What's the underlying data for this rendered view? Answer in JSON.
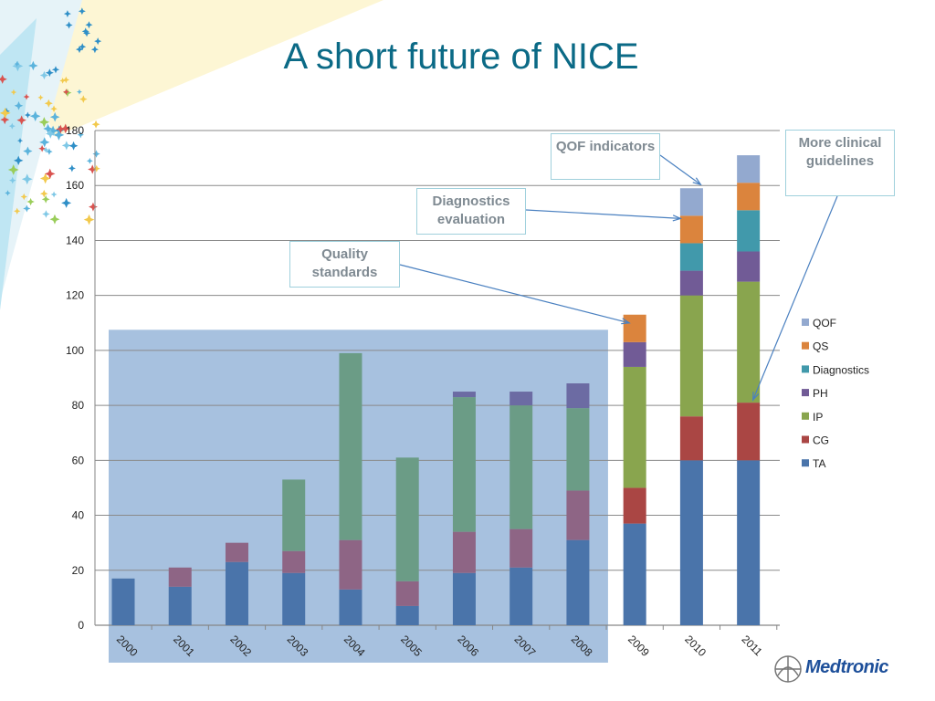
{
  "slide": {
    "title": "A short future of NICE"
  },
  "callouts": {
    "qof": "QOF indicators",
    "diagnostics": "Diagnostics evaluation",
    "quality": "Quality standards",
    "guidelines": "More clinical guidelines"
  },
  "logo": {
    "text": "Medtronic"
  },
  "colors": {
    "TA": "#4a74aa",
    "CG": "#aa4644",
    "PH": "#715b96",
    "IP": "#89a54e",
    "Diagnostics": "#4199ab",
    "QS": "#db843d",
    "QOF": "#93a9cf",
    "shade": "#a7c1df",
    "title": "#0b6a86",
    "callout_border": "#9fd0dc"
  },
  "chart_data": {
    "type": "bar",
    "stacked": true,
    "title": "",
    "xlabel": "",
    "ylabel": "",
    "ylim": [
      0,
      180
    ],
    "yticks": [
      0,
      20,
      40,
      60,
      80,
      100,
      120,
      140,
      160,
      180
    ],
    "grid": true,
    "legend_position": "right",
    "shaded_categories": [
      "2000",
      "2001",
      "2002",
      "2003",
      "2004",
      "2005",
      "2006",
      "2007",
      "2008"
    ],
    "categories": [
      "2000",
      "2001",
      "2002",
      "2003",
      "2004",
      "2005",
      "2006",
      "2007",
      "2008",
      "2009",
      "2010",
      "2011"
    ],
    "series": [
      {
        "name": "TA",
        "values": [
          17,
          14,
          23,
          19,
          13,
          7,
          19,
          21,
          31,
          37,
          60,
          60
        ]
      },
      {
        "name": "CG",
        "values": [
          0,
          7,
          7,
          8,
          18,
          9,
          15,
          14,
          18,
          13,
          16,
          21
        ]
      },
      {
        "name": "IP",
        "values": [
          0,
          0,
          0,
          26,
          68,
          45,
          49,
          45,
          30,
          44,
          44,
          44
        ]
      },
      {
        "name": "PH",
        "values": [
          0,
          0,
          0,
          0,
          0,
          0,
          2,
          5,
          9,
          9,
          9,
          11
        ]
      },
      {
        "name": "Diagnostics",
        "values": [
          0,
          0,
          0,
          0,
          0,
          0,
          0,
          0,
          0,
          0,
          10,
          15
        ]
      },
      {
        "name": "QS",
        "values": [
          0,
          0,
          0,
          0,
          0,
          0,
          0,
          0,
          0,
          10,
          10,
          10
        ]
      },
      {
        "name": "QOF",
        "values": [
          0,
          0,
          0,
          0,
          0,
          0,
          0,
          0,
          0,
          0,
          10,
          10
        ]
      }
    ],
    "legend_order": [
      "QOF",
      "QS",
      "Diagnostics",
      "PH",
      "IP",
      "CG",
      "TA"
    ]
  }
}
